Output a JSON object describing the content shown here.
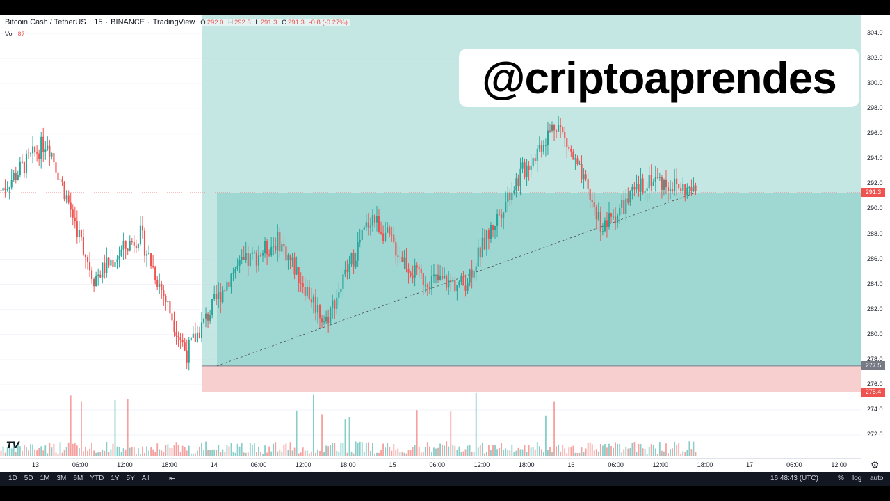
{
  "legend": {
    "symbol": "Bitcoin Cash / TetherUS",
    "interval": "15",
    "exchange": "BINANCE",
    "source": "TradingView",
    "ohlc": {
      "o": "292.0",
      "h": "292.3",
      "l": "291.3",
      "c": "291.3",
      "change": "-0.8 (-0.27%)"
    },
    "vol_label": "Vol",
    "vol_value": "87"
  },
  "watermark": "@criptoaprendes",
  "price_axis": {
    "ticks": [
      "304.0",
      "302.0",
      "300.0",
      "298.0",
      "296.0",
      "294.0",
      "292.0",
      "290.0",
      "288.0",
      "286.0",
      "284.0",
      "282.0",
      "280.0",
      "278.0",
      "276.0",
      "274.0",
      "272.0"
    ],
    "current_price": "291.3",
    "entry_price": "277.5",
    "stop_price": "275.4",
    "colors": {
      "current": "#ef5350",
      "entry": "#787b86",
      "stop": "#ef5350"
    }
  },
  "time_axis": {
    "ticks": [
      "13",
      "06:00",
      "12:00",
      "18:00",
      "14",
      "06:00",
      "12:00",
      "18:00",
      "15",
      "06:00",
      "12:00",
      "18:00",
      "16",
      "06:00",
      "12:00",
      "18:00",
      "17",
      "06:00",
      "12:00"
    ]
  },
  "bottom_bar": {
    "ranges": [
      "1D",
      "5D",
      "1M",
      "3M",
      "6M",
      "YTD",
      "1Y",
      "5Y",
      "All"
    ],
    "clock": "16:48:43 (UTC)",
    "pct": "%",
    "log": "log",
    "auto": "auto"
  },
  "icons": {
    "logo": "tradingview-logo-icon",
    "settings": "gear-icon",
    "compare": "calendar-range-icon"
  },
  "chart_data": {
    "type": "candlestick",
    "title": "",
    "ylim": [
      271,
      305
    ],
    "x": [
      "13 00:00",
      "13 06:00",
      "13 12:00",
      "13 18:00",
      "14 00:00",
      "14 06:00",
      "14 12:00",
      "14 18:00",
      "15 00:00",
      "15 06:00",
      "15 12:00",
      "15 18:00",
      "16 00:00",
      "16 06:00",
      "16 12:00",
      "16 16:45"
    ],
    "close_path": [
      291.5,
      295.5,
      284.5,
      288.0,
      278.5,
      285.0,
      287.5,
      281.0,
      289.5,
      284.5,
      284.0,
      291.5,
      297.0,
      288.5,
      292.5,
      291.3
    ],
    "position": {
      "type": "long",
      "entry": 277.5,
      "stop": 275.4,
      "target": 304.0
    },
    "colors": {
      "up": "#26a69a",
      "down": "#ef5350",
      "profit_zone": "#b2dfdb",
      "loss_zone": "#f8cfcf"
    }
  }
}
